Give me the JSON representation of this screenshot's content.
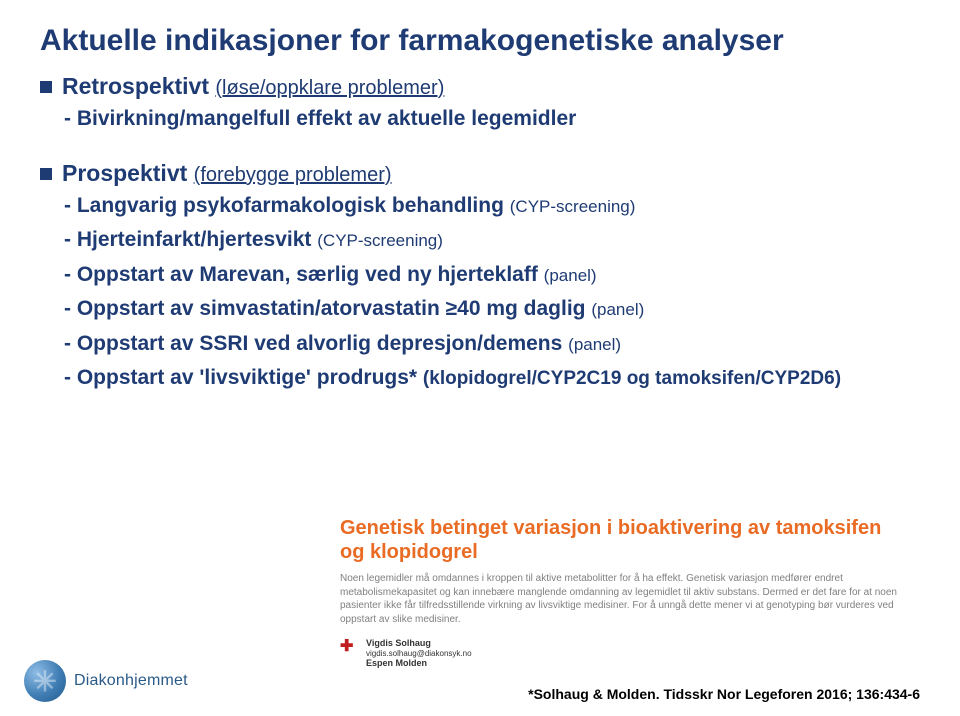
{
  "title": "Aktuelle indikasjoner for farmakogenetiske analyser",
  "section1": {
    "label": "Retrospektivt",
    "paren": "(løse/oppklare problemer)",
    "sub1": "- Bivirkning/mangelfull effekt av aktuelle legemidler"
  },
  "section2": {
    "label": "Prospektivt",
    "paren": "(forebygge problemer)",
    "sub1": "- Langvarig psykofarmakologisk behandling ",
    "sub1_paren": "(CYP-screening)",
    "sub2": "- Hjerteinfarkt/hjertesvikt ",
    "sub2_paren": "(CYP-screening)",
    "sub3": "- Oppstart av Marevan, særlig ved ny hjerteklaff ",
    "sub3_paren": "(panel)",
    "sub4": "- Oppstart av simvastatin/atorvastatin ≥40 mg daglig ",
    "sub4_paren": "(panel)",
    "sub5": "- Oppstart av SSRI ved alvorlig depresjon/demens ",
    "sub5_paren": "(panel)",
    "sub6a": "- Oppstart av 'livsviktige' prodrugs* ",
    "sub6b": "(klopidogrel/CYP2C19 og tamoksifen/CYP2D6)"
  },
  "clip": {
    "title": "Genetisk betinget variasjon i bioaktivering av tamoksifen og klopidogrel",
    "body": "Noen legemidler må omdannes i kroppen til aktive metabolitter for å ha effekt. Genetisk variasjon medfører endret metabolismekapasitet og kan innebære manglende omdanning av legemidlet til aktiv substans. Dermed er det fare for at noen pasienter ikke får tilfredsstillende virkning av livsviktige medisiner. For å unngå dette mener vi at genotyping bør vurderes ved oppstart av slike medisiner.",
    "author1": "Vigdis Solhaug",
    "email": "vigdis.solhaug@diakonsyk.no",
    "author2": "Espen Molden"
  },
  "cite": "*Solhaug & Molden. Tidsskr Nor Legeforen 2016; 136:434-6",
  "logo": {
    "mark": "✳",
    "name": "Diakonhjemmet"
  }
}
